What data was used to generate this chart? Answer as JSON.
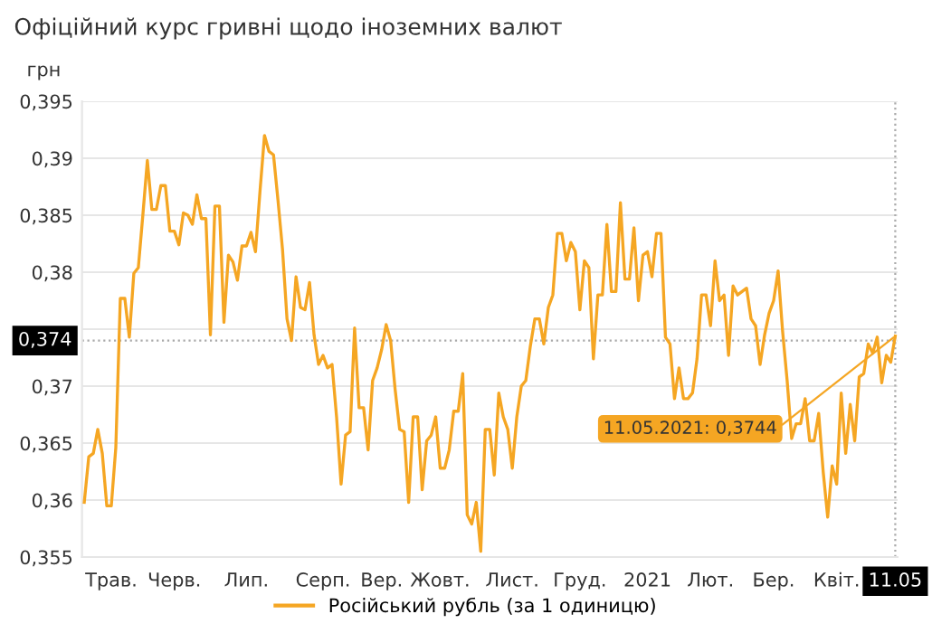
{
  "chart_data": {
    "type": "line",
    "title": "Офіційний курс гривні щодо іноземних валют",
    "ylabel": "грн",
    "categories": [
      null,
      null,
      null,
      null,
      null,
      null,
      "Трав.",
      null,
      null,
      null,
      null,
      null,
      null,
      null,
      null,
      null,
      null,
      null,
      null,
      null,
      "Черв.",
      null,
      null,
      null,
      null,
      null,
      null,
      null,
      null,
      null,
      null,
      null,
      null,
      null,
      null,
      null,
      "Лип.",
      null,
      null,
      null,
      null,
      null,
      null,
      null,
      null,
      null,
      null,
      null,
      null,
      null,
      null,
      null,
      null,
      "Серп.",
      null,
      null,
      null,
      null,
      null,
      null,
      null,
      null,
      null,
      null,
      null,
      null,
      "Вер.",
      null,
      null,
      null,
      null,
      null,
      null,
      null,
      null,
      null,
      null,
      null,
      null,
      "Жовт.",
      null,
      null,
      null,
      null,
      null,
      null,
      null,
      null,
      null,
      null,
      null,
      null,
      null,
      null,
      null,
      "Лист.",
      null,
      null,
      null,
      null,
      null,
      null,
      null,
      null,
      null,
      null,
      null,
      null,
      null,
      null,
      "Груд.",
      null,
      null,
      null,
      null,
      null,
      null,
      null,
      null,
      null,
      null,
      null,
      null,
      null,
      null,
      "2021",
      null,
      null,
      null,
      null,
      null,
      null,
      null,
      null,
      null,
      null,
      null,
      null,
      null,
      "Лют.",
      null,
      null,
      null,
      null,
      null,
      null,
      null,
      null,
      null,
      null,
      null,
      null,
      null,
      "Бер.",
      null,
      null,
      null,
      null,
      null,
      null,
      null,
      null,
      null,
      null,
      null,
      null,
      null,
      "Квіт.",
      null,
      null,
      null,
      null,
      null,
      null,
      null,
      null,
      null,
      null,
      null,
      null,
      "11.05"
    ],
    "series": [
      {
        "name": "Російський рубль (за 1 одиницю)",
        "color": "#f5a623",
        "values": [
          0.3598,
          0.3638,
          0.3641,
          0.3662,
          0.3641,
          0.3595,
          0.3595,
          0.3646,
          0.3777,
          0.3777,
          0.3743,
          0.3799,
          0.3804,
          0.385,
          0.3898,
          0.3855,
          0.3855,
          0.3876,
          0.3876,
          0.3836,
          0.3836,
          0.3824,
          0.3852,
          0.385,
          0.3842,
          0.3868,
          0.3847,
          0.3847,
          0.3745,
          0.3858,
          0.3858,
          0.3756,
          0.3815,
          0.3809,
          0.3793,
          0.3823,
          0.3823,
          0.3835,
          0.3818,
          0.3871,
          0.392,
          0.3906,
          0.3903,
          0.3863,
          0.382,
          0.3759,
          0.374,
          0.3796,
          0.3769,
          0.3767,
          0.3791,
          0.3745,
          0.3719,
          0.3727,
          0.3716,
          0.3719,
          0.3673,
          0.3614,
          0.3657,
          0.366,
          0.3751,
          0.3681,
          0.3681,
          0.3644,
          0.3705,
          0.3716,
          0.3732,
          0.3754,
          0.374,
          0.3697,
          0.3662,
          0.366,
          0.3598,
          0.3673,
          0.3673,
          0.3609,
          0.3652,
          0.3657,
          0.3673,
          0.3628,
          0.3628,
          0.3644,
          0.3678,
          0.3678,
          0.3711,
          0.3587,
          0.3579,
          0.3598,
          0.3555,
          0.3662,
          0.3662,
          0.3622,
          0.3694,
          0.3673,
          0.3662,
          0.3628,
          0.3673,
          0.37,
          0.3705,
          0.3735,
          0.3759,
          0.3759,
          0.3737,
          0.3769,
          0.378,
          0.3834,
          0.3834,
          0.381,
          0.3826,
          0.3818,
          0.3767,
          0.381,
          0.3804,
          0.3724,
          0.378,
          0.378,
          0.3842,
          0.3783,
          0.3783,
          0.3861,
          0.3794,
          0.3794,
          0.3839,
          0.3775,
          0.3815,
          0.3818,
          0.3796,
          0.3834,
          0.3834,
          0.3743,
          0.3737,
          0.3689,
          0.3716,
          0.3689,
          0.3689,
          0.3694,
          0.3724,
          0.378,
          0.378,
          0.3753,
          0.381,
          0.3775,
          0.378,
          0.3727,
          0.3788,
          0.378,
          0.3783,
          0.3786,
          0.3759,
          0.3753,
          0.3719,
          0.3745,
          0.3764,
          0.3775,
          0.3801,
          0.3748,
          0.3705,
          0.3654,
          0.3667,
          0.3667,
          0.3689,
          0.3652,
          0.3652,
          0.3676,
          0.3625,
          0.3585,
          0.363,
          0.3614,
          0.3694,
          0.3641,
          0.3684,
          0.3652,
          0.3708,
          0.3711,
          0.3737,
          0.3729,
          0.3743,
          0.3703,
          0.3727,
          0.3721,
          0.3744
        ]
      }
    ],
    "ylim": [
      0.355,
      0.395
    ],
    "yticks": [
      {
        "value": 0.355,
        "label": "0,355"
      },
      {
        "value": 0.36,
        "label": "0,36"
      },
      {
        "value": 0.365,
        "label": "0,365"
      },
      {
        "value": 0.37,
        "label": "0,37"
      },
      {
        "value": 0.375,
        "label": null
      },
      {
        "value": 0.38,
        "label": "0,38"
      },
      {
        "value": 0.385,
        "label": "0,385"
      },
      {
        "value": 0.39,
        "label": "0,39"
      },
      {
        "value": 0.395,
        "label": "0,395"
      }
    ],
    "ref_lines": [
      {
        "axis": "y",
        "value": 0.374,
        "label": "0,374",
        "color": "#aaaaaa",
        "line_style": "dotted"
      },
      {
        "axis": "x",
        "value": "11.05",
        "color": "#aaaaaa",
        "line_style": "dotted"
      }
    ],
    "annotations": [
      {
        "text": "11.05.2021: 0,3744",
        "x": "11.05",
        "y": 0.3744
      }
    ],
    "grid": "y",
    "legend": "bottom",
    "marker": "none",
    "line_style": "solid"
  }
}
